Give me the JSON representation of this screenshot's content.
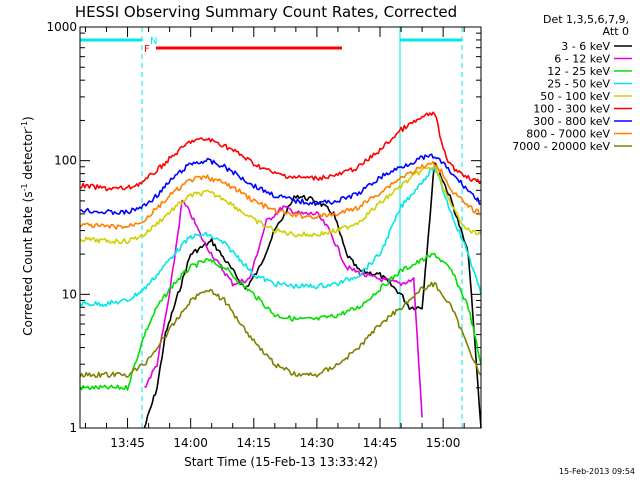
{
  "chart_data": {
    "type": "line",
    "title": "HESSI Observing Summary Count Rates, Corrected",
    "xlabel": "Start Time (15-Feb-13 13:33:42)",
    "ylabel": "Corrected Count Rate (s⁻¹ detector⁻¹)",
    "ylabel_parts": {
      "a": "Corrected Count Rate (s",
      "b": "-1",
      "c": " detector",
      "d": "-1",
      "e": ")"
    },
    "y_scale": "log",
    "ylim": [
      1,
      1000
    ],
    "xlim": [
      "13:33:42",
      "15:09:00"
    ],
    "x_ticks": [
      "13:45",
      "14:00",
      "14:15",
      "14:30",
      "14:45",
      "15:00"
    ],
    "y_tick_labels": [
      "1",
      "10",
      "100",
      "1000"
    ],
    "grid": false,
    "legend_position": "top-right outside plot",
    "legend_header": [
      "Det 1,3,5,6,7,9,",
      "Att 0"
    ],
    "timestamp": "15-Feb-2013 09:54",
    "flags": {
      "N": "N",
      "F": "F"
    },
    "series": [
      {
        "name": "3 - 6 keV",
        "color": "#000000",
        "x": [
          "13:49",
          "13:52",
          "13:54",
          "13:57",
          "14:00",
          "14:05",
          "14:10",
          "14:13",
          "14:16",
          "14:20",
          "14:25",
          "14:30",
          "14:34",
          "14:37",
          "14:40",
          "14:45",
          "14:50",
          "14:52",
          "14:55",
          "14:58",
          "15:02",
          "15:06",
          "15:09"
        ],
        "y": [
          1,
          2,
          5,
          10,
          20,
          25,
          15,
          11,
          15,
          30,
          55,
          50,
          40,
          20,
          15,
          14,
          10,
          8,
          8,
          100,
          50,
          20,
          1
        ]
      },
      {
        "name": "6 - 12 keV",
        "color": "#e000e0",
        "x": [
          "13:49",
          "13:52",
          "13:55",
          "13:58",
          "14:00",
          "14:03",
          "14:06",
          "14:10",
          "14:14",
          "14:18",
          "14:22",
          "14:26",
          "14:30",
          "14:33",
          "14:37",
          "14:41",
          "14:45",
          "14:50",
          "14:53",
          "14:55"
        ],
        "y": [
          2,
          3,
          10,
          50,
          40,
          25,
          18,
          12,
          13,
          35,
          45,
          40,
          40,
          30,
          16,
          14,
          13,
          12,
          13,
          1.2
        ]
      },
      {
        "name": "12 - 25 keV",
        "color": "#00e000",
        "x": [
          "13:33:42",
          "13:40",
          "13:45",
          "13:49",
          "13:52",
          "13:56",
          "14:00",
          "14:04",
          "14:08",
          "14:12",
          "14:15",
          "14:20",
          "14:25",
          "14:30",
          "14:35",
          "14:40",
          "14:45",
          "14:50",
          "14:55",
          "14:58",
          "15:02",
          "15:06",
          "15:09"
        ],
        "y": [
          2,
          2,
          2,
          5,
          8,
          12,
          16,
          18,
          16,
          12,
          10,
          7,
          6.5,
          6.5,
          7,
          8,
          11,
          15,
          18,
          20,
          15,
          8,
          3
        ]
      },
      {
        "name": "25 - 50 keV",
        "color": "#00e8e8",
        "x": [
          "13:33:42",
          "13:40",
          "13:45",
          "13:49",
          "13:52",
          "13:56",
          "14:00",
          "14:04",
          "14:08",
          "14:12",
          "14:15",
          "14:20",
          "14:25",
          "14:30",
          "14:35",
          "14:40",
          "14:45",
          "14:50",
          "14:55",
          "14:58",
          "15:02",
          "15:06",
          "15:09"
        ],
        "y": [
          8.5,
          8.5,
          9,
          11,
          14,
          20,
          27,
          28,
          24,
          18,
          14,
          12,
          11.5,
          11.5,
          12,
          14,
          20,
          45,
          70,
          90,
          40,
          20,
          10
        ]
      },
      {
        "name": "50 - 100 keV",
        "color": "#d0d000",
        "x": [
          "13:33:42",
          "13:40",
          "13:45",
          "13:49",
          "13:52",
          "13:56",
          "14:00",
          "14:04",
          "14:08",
          "14:12",
          "14:15",
          "14:20",
          "14:25",
          "14:30",
          "14:35",
          "14:40",
          "14:45",
          "14:50",
          "14:55",
          "14:58",
          "15:02",
          "15:06",
          "15:09"
        ],
        "y": [
          26,
          25,
          25,
          28,
          34,
          44,
          55,
          58,
          52,
          42,
          36,
          30,
          28,
          28,
          30,
          35,
          48,
          65,
          85,
          90,
          45,
          30,
          28
        ]
      },
      {
        "name": "100 - 300 keV",
        "color": "#ff0000",
        "x": [
          "13:33:42",
          "13:40",
          "13:45",
          "13:49",
          "13:52",
          "13:56",
          "14:00",
          "14:04",
          "14:08",
          "14:12",
          "14:15",
          "14:20",
          "14:25",
          "14:30",
          "14:35",
          "14:40",
          "14:45",
          "14:50",
          "14:55",
          "14:58",
          "15:00",
          "15:02",
          "15:06",
          "15:09"
        ],
        "y": [
          65,
          62,
          62,
          70,
          85,
          110,
          140,
          145,
          130,
          110,
          95,
          80,
          75,
          74,
          78,
          90,
          120,
          170,
          210,
          230,
          120,
          90,
          75,
          68
        ]
      },
      {
        "name": "300 - 800 keV",
        "color": "#0000ff",
        "x": [
          "13:33:42",
          "13:40",
          "13:45",
          "13:49",
          "13:52",
          "13:56",
          "14:00",
          "14:04",
          "14:08",
          "14:12",
          "14:15",
          "14:20",
          "14:25",
          "14:30",
          "14:35",
          "14:40",
          "14:45",
          "14:50",
          "14:55",
          "14:58",
          "15:00",
          "15:02",
          "15:06",
          "15:09"
        ],
        "y": [
          43,
          41,
          41,
          46,
          55,
          75,
          95,
          100,
          90,
          75,
          65,
          55,
          50,
          48,
          50,
          57,
          75,
          90,
          105,
          108,
          95,
          80,
          60,
          48
        ]
      },
      {
        "name": "800 - 7000 keV",
        "color": "#ff8000",
        "x": [
          "13:33:42",
          "13:40",
          "13:45",
          "13:49",
          "13:52",
          "13:56",
          "14:00",
          "14:04",
          "14:08",
          "14:12",
          "14:15",
          "14:20",
          "14:25",
          "14:30",
          "14:35",
          "14:40",
          "14:45",
          "14:50",
          "14:55",
          "14:58",
          "15:00",
          "15:02",
          "15:06",
          "15:09"
        ],
        "y": [
          33,
          32,
          32,
          36,
          44,
          58,
          72,
          75,
          68,
          58,
          50,
          42,
          39,
          38,
          40,
          45,
          58,
          75,
          90,
          95,
          80,
          60,
          45,
          40
        ]
      },
      {
        "name": "7000 - 20000 keV",
        "color": "#808000",
        "x": [
          "13:33:42",
          "13:40",
          "13:45",
          "13:49",
          "13:52",
          "13:56",
          "14:00",
          "14:04",
          "14:08",
          "14:12",
          "14:15",
          "14:20",
          "14:25",
          "14:30",
          "14:35",
          "14:40",
          "14:45",
          "14:50",
          "14:55",
          "14:58",
          "15:02",
          "15:06",
          "15:09"
        ],
        "y": [
          2.5,
          2.5,
          2.5,
          3,
          4,
          6,
          9,
          11,
          9,
          6,
          4.5,
          3,
          2.5,
          2.5,
          3,
          4,
          6,
          8,
          11,
          12,
          8,
          4,
          2.5
        ]
      }
    ]
  }
}
